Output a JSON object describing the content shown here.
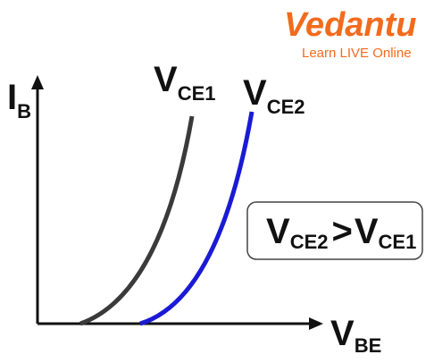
{
  "logo": {
    "name": "Vedantu",
    "tagline": "Learn LIVE Online"
  },
  "axes": {
    "y": {
      "symbol": "I",
      "subscript": "B"
    },
    "x": {
      "symbol": "V",
      "subscript": "BE"
    }
  },
  "curves": [
    {
      "symbol": "V",
      "subscript": "CE1"
    },
    {
      "symbol": "V",
      "subscript": "CE2"
    }
  ],
  "relation": {
    "left": {
      "symbol": "V",
      "subscript": "CE2"
    },
    "operator": ">",
    "right": {
      "symbol": "V",
      "subscript": "CE1"
    }
  }
}
